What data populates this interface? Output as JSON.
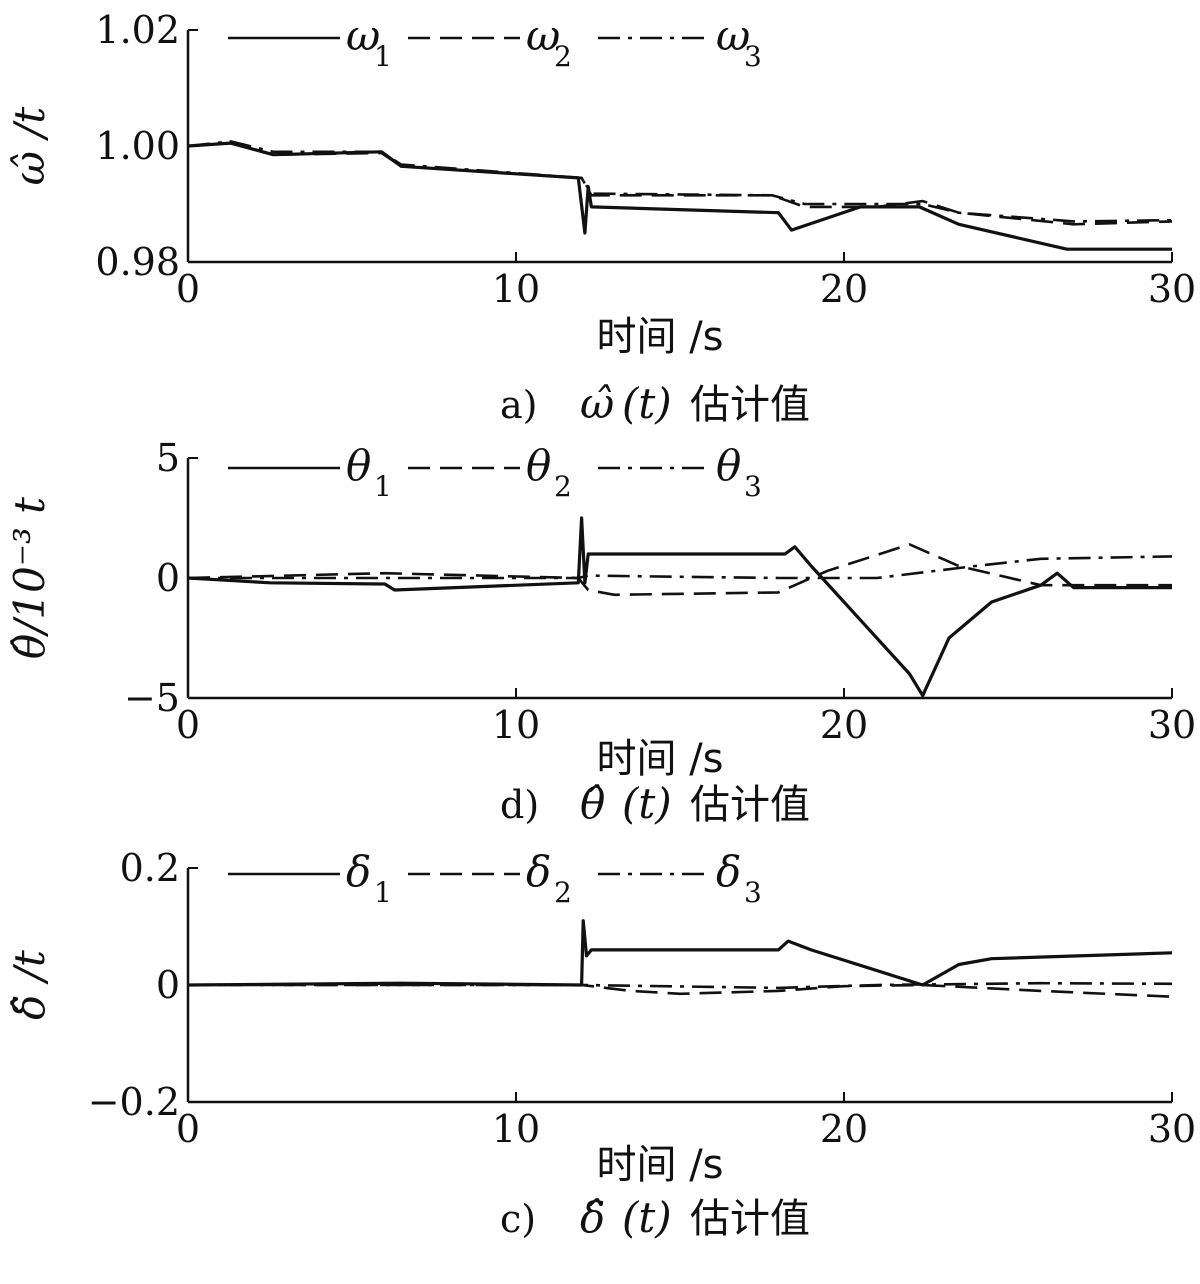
{
  "chart_data": [
    {
      "type": "line",
      "panel_label": "a)",
      "caption_symbol": "ω̂",
      "caption_arg": "(t)",
      "caption_text": "估计值",
      "xlabel": "时间 /s",
      "ylabel": "ω̂ /t",
      "xlim": [
        0,
        30
      ],
      "ylim": [
        0.98,
        1.02
      ],
      "xticks": [
        "0",
        "10",
        "20",
        "30"
      ],
      "yticks": [
        "0.98",
        "1.00",
        "1.02"
      ],
      "ytick_values": [
        0.98,
        1.0,
        1.02
      ],
      "series": [
        {
          "name": "ω",
          "sub": "1",
          "style": "solid",
          "points": [
            [
              0,
              1.0
            ],
            [
              1.3,
              1.0005
            ],
            [
              2.6,
              0.9985
            ],
            [
              5.9,
              0.999
            ],
            [
              6.5,
              0.9965
            ],
            [
              11.9,
              0.9945
            ],
            [
              12.1,
              0.985
            ],
            [
              12.2,
              0.993
            ],
            [
              12.3,
              0.9895
            ],
            [
              18.0,
              0.9885
            ],
            [
              18.4,
              0.9855
            ],
            [
              20.5,
              0.9895
            ],
            [
              22.3,
              0.9895
            ],
            [
              23.5,
              0.9865
            ],
            [
              26.8,
              0.9822
            ],
            [
              30,
              0.9822
            ]
          ]
        },
        {
          "name": "ω",
          "sub": "2",
          "style": "dashed",
          "points": [
            [
              0,
              1.0
            ],
            [
              1.3,
              1.0005
            ],
            [
              2.6,
              0.9985
            ],
            [
              5.9,
              0.9988
            ],
            [
              6.5,
              0.9965
            ],
            [
              12.0,
              0.9945
            ],
            [
              12.3,
              0.9915
            ],
            [
              17.8,
              0.9915
            ],
            [
              18.8,
              0.9895
            ],
            [
              21.0,
              0.9895
            ],
            [
              22.4,
              0.9905
            ],
            [
              23.5,
              0.9885
            ],
            [
              27.0,
              0.9865
            ],
            [
              30,
              0.987
            ]
          ]
        },
        {
          "name": "ω",
          "sub": "3",
          "style": "dashdot",
          "points": [
            [
              0,
              1.0
            ],
            [
              1.3,
              1.0008
            ],
            [
              2.6,
              0.999
            ],
            [
              5.9,
              0.999
            ],
            [
              6.5,
              0.9968
            ],
            [
              12.0,
              0.9945
            ],
            [
              12.3,
              0.9918
            ],
            [
              17.8,
              0.9915
            ],
            [
              18.8,
              0.99
            ],
            [
              22.4,
              0.99
            ],
            [
              23.5,
              0.9885
            ],
            [
              27.0,
              0.987
            ],
            [
              30,
              0.9872
            ]
          ]
        }
      ]
    },
    {
      "type": "line",
      "panel_label": "d)",
      "caption_symbol": "θ̂",
      "caption_arg": "(t)",
      "caption_text": "估计值",
      "xlabel": "时间 /s",
      "ylabel": "θ̂/10⁻³ t",
      "xlim": [
        0,
        30
      ],
      "ylim": [
        -5,
        5
      ],
      "xticks": [
        "0",
        "10",
        "20",
        "30"
      ],
      "yticks": [
        "−5",
        "0",
        "5"
      ],
      "ytick_values": [
        -5,
        0,
        5
      ],
      "series": [
        {
          "name": "θ",
          "sub": "1",
          "style": "solid",
          "points": [
            [
              0,
              0.0
            ],
            [
              2.5,
              -0.2
            ],
            [
              6.0,
              -0.25
            ],
            [
              6.3,
              -0.5
            ],
            [
              11.9,
              -0.2
            ],
            [
              12.0,
              2.5
            ],
            [
              12.1,
              -0.2
            ],
            [
              12.2,
              1.0
            ],
            [
              18.2,
              1.0
            ],
            [
              18.5,
              1.3
            ],
            [
              19.0,
              0.5
            ],
            [
              22.0,
              -4.0
            ],
            [
              22.4,
              -4.9
            ],
            [
              23.2,
              -2.5
            ],
            [
              24.5,
              -1.0
            ],
            [
              26.0,
              -0.3
            ],
            [
              26.5,
              0.2
            ],
            [
              27.0,
              -0.4
            ],
            [
              30,
              -0.4
            ]
          ]
        },
        {
          "name": "θ",
          "sub": "2",
          "style": "dashed",
          "points": [
            [
              0,
              0.0
            ],
            [
              6.0,
              0.2
            ],
            [
              11.9,
              0.0
            ],
            [
              12.2,
              -0.5
            ],
            [
              13,
              -0.7
            ],
            [
              18,
              -0.6
            ],
            [
              19.5,
              0.3
            ],
            [
              22.0,
              1.4
            ],
            [
              23.5,
              0.5
            ],
            [
              26.0,
              -0.3
            ],
            [
              30,
              -0.3
            ]
          ]
        },
        {
          "name": "θ",
          "sub": "3",
          "style": "dashdot",
          "points": [
            [
              0,
              0.0
            ],
            [
              11.9,
              0.0
            ],
            [
              12.2,
              0.1
            ],
            [
              18,
              0.0
            ],
            [
              21,
              0.0
            ],
            [
              24.0,
              0.5
            ],
            [
              26.0,
              0.8
            ],
            [
              30,
              0.9
            ]
          ]
        }
      ]
    },
    {
      "type": "line",
      "panel_label": "c)",
      "caption_symbol": "δ̂",
      "caption_arg": "(t)",
      "caption_text": "估计值",
      "xlabel": "时间 /s",
      "ylabel": "δ̂ /t",
      "xlim": [
        0,
        30
      ],
      "ylim": [
        -0.2,
        0.2
      ],
      "xticks": [
        "0",
        "10",
        "20",
        "30"
      ],
      "yticks": [
        "−0.2",
        "0",
        "0.2"
      ],
      "ytick_values": [
        -0.2,
        0.0,
        0.2
      ],
      "series": [
        {
          "name": "δ",
          "sub": "1",
          "style": "solid",
          "points": [
            [
              0,
              0.0
            ],
            [
              6.5,
              0.003
            ],
            [
              12.0,
              0.0
            ],
            [
              12.05,
              0.11
            ],
            [
              12.15,
              0.05
            ],
            [
              12.3,
              0.06
            ],
            [
              18.0,
              0.06
            ],
            [
              18.3,
              0.075
            ],
            [
              19.0,
              0.06
            ],
            [
              22.4,
              0.0
            ],
            [
              23.5,
              0.035
            ],
            [
              24.5,
              0.045
            ],
            [
              30,
              0.055
            ]
          ]
        },
        {
          "name": "δ",
          "sub": "2",
          "style": "dashed",
          "points": [
            [
              0,
              0.0
            ],
            [
              12.0,
              0.0
            ],
            [
              13.5,
              -0.01
            ],
            [
              15.0,
              -0.015
            ],
            [
              18.0,
              -0.01
            ],
            [
              20.0,
              -0.002
            ],
            [
              22.4,
              0.0
            ],
            [
              26.0,
              -0.01
            ],
            [
              30,
              -0.02
            ]
          ]
        },
        {
          "name": "δ",
          "sub": "3",
          "style": "dashdot",
          "points": [
            [
              0,
              0.0
            ],
            [
              12.0,
              0.0
            ],
            [
              18.0,
              -0.005
            ],
            [
              21.0,
              0.0
            ],
            [
              26.0,
              0.003
            ],
            [
              30,
              0.002
            ]
          ]
        }
      ]
    }
  ]
}
